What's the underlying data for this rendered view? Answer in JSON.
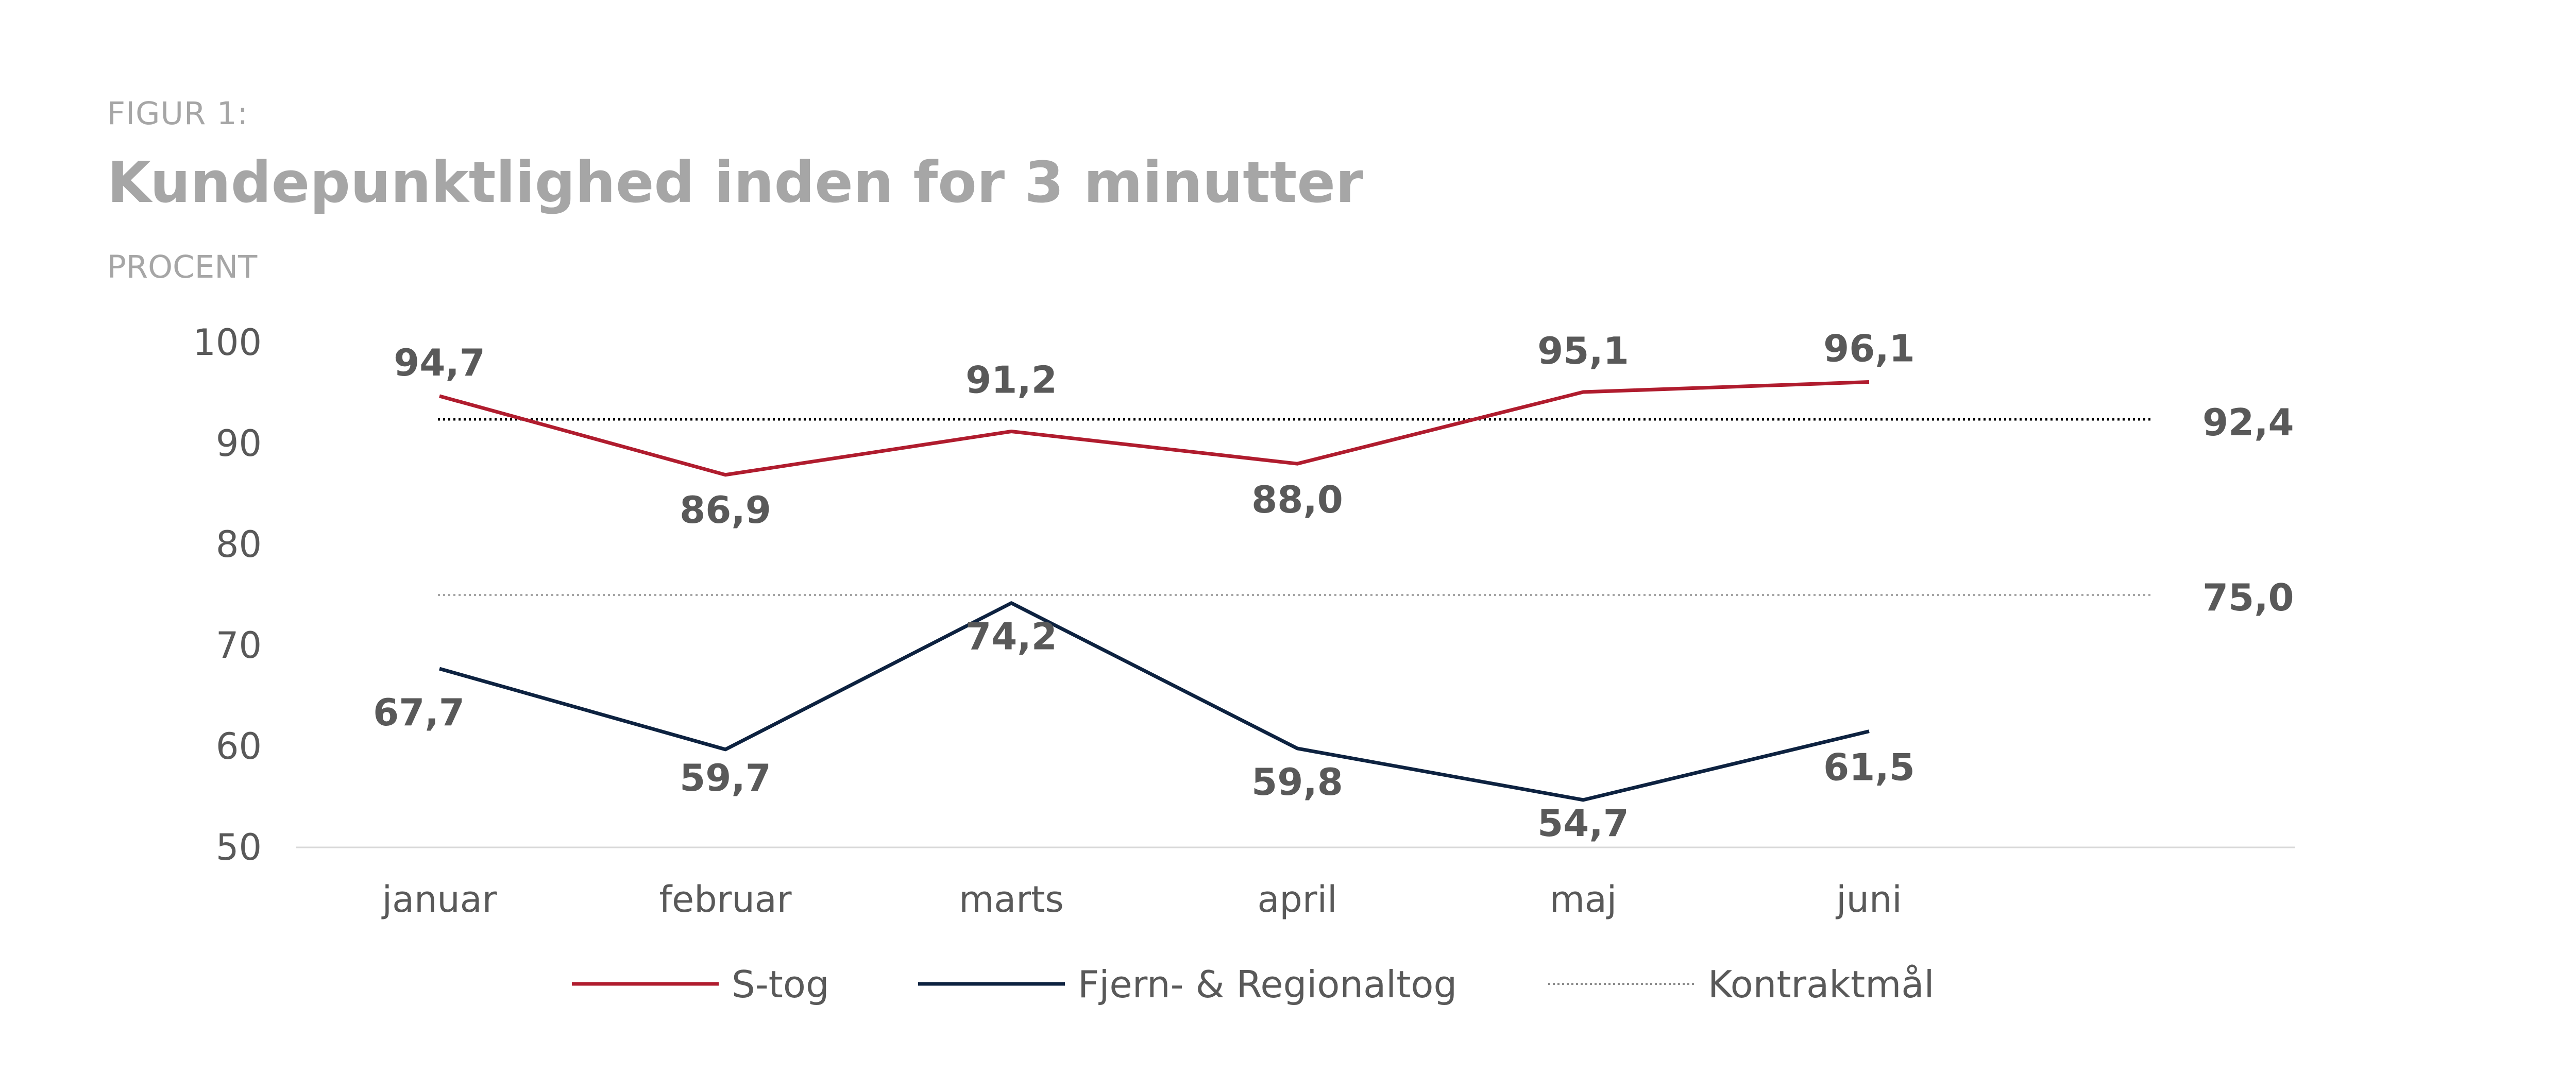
{
  "figure": {
    "label": "FIGUR 1:",
    "title": "Kundepunktlighed inden for 3 minutter",
    "unit": "PROCENT"
  },
  "chart_data": {
    "type": "line",
    "categories": [
      "januar",
      "februar",
      "marts",
      "april",
      "maj",
      "juni"
    ],
    "ylim": [
      50,
      100
    ],
    "yticks": [
      "100",
      "90",
      "80",
      "70",
      "60",
      "50"
    ],
    "grid": false,
    "legend_position": "bottom",
    "series": [
      {
        "name": "S-tog",
        "color": "#b01c2e",
        "values": [
          94.7,
          86.9,
          91.2,
          88.0,
          95.1,
          96.1
        ],
        "labels": [
          "94,7",
          "86,9",
          "91,2",
          "88,0",
          "95,1",
          "96,1"
        ]
      },
      {
        "name": "Fjern- & Regionaltog",
        "color": "#0d2240",
        "values": [
          67.7,
          59.7,
          74.2,
          59.8,
          54.7,
          61.5
        ],
        "labels": [
          "67,7",
          "59,7",
          "74,2",
          "59,8",
          "54,7",
          "61,5"
        ]
      }
    ],
    "reference_lines": [
      {
        "name": "Kontraktmål",
        "value": 92.4,
        "label": "92,4",
        "color": "#000000",
        "style": "dotted"
      },
      {
        "value": 75.0,
        "label": "75,0",
        "color": "#a6a6a6",
        "style": "dotted"
      }
    ]
  }
}
